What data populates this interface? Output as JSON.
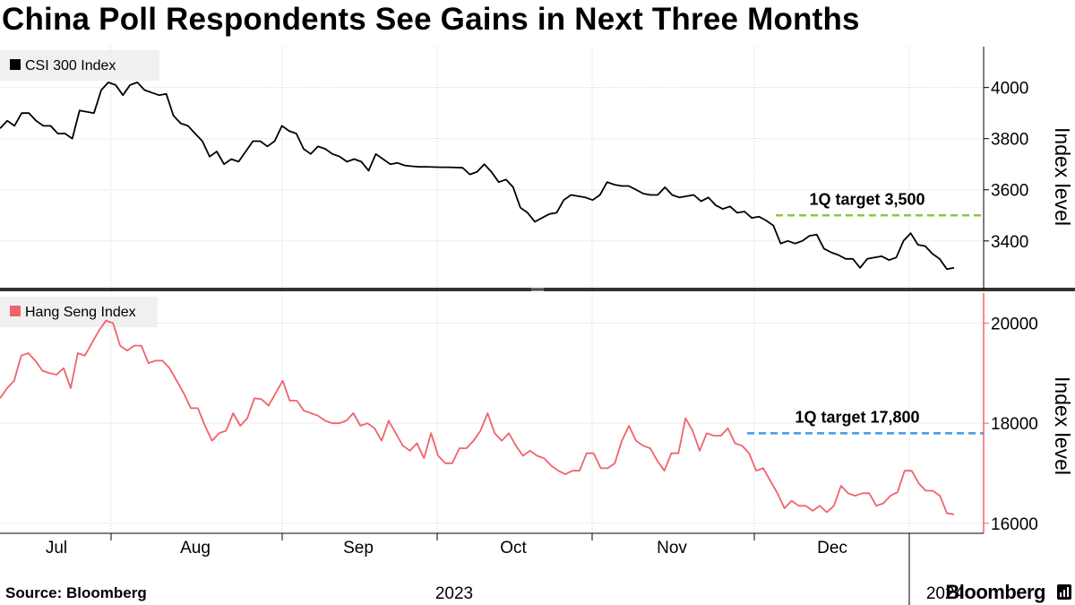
{
  "title": "China Poll Respondents See Gains in Next Three Months",
  "source": "Source: Bloomberg",
  "brand": "Bloomberg",
  "chart_data": [
    {
      "type": "line",
      "series_name": "CSI 300 Index",
      "color": "#000000",
      "ylabel": "Index level",
      "yticks": [
        3400,
        3600,
        3800,
        4000
      ],
      "ylim": [
        3210,
        4160
      ],
      "target": {
        "label": "1Q target 3,500",
        "value": 3500,
        "color": "#8dc63f"
      },
      "values": [
        3840,
        3870,
        3850,
        3900,
        3900,
        3870,
        3850,
        3850,
        3820,
        3820,
        3800,
        3910,
        3905,
        3900,
        3990,
        4020,
        4010,
        3970,
        4010,
        4020,
        3990,
        3980,
        3970,
        3975,
        3890,
        3860,
        3850,
        3820,
        3790,
        3730,
        3750,
        3700,
        3720,
        3710,
        3750,
        3790,
        3790,
        3770,
        3790,
        3850,
        3830,
        3820,
        3760,
        3740,
        3770,
        3760,
        3740,
        3730,
        3710,
        3720,
        3710,
        3675,
        3740,
        3720,
        3700,
        3705,
        3695,
        3692,
        3690,
        3690,
        3689,
        3688,
        3688,
        3687,
        3686,
        3660,
        3670,
        3700,
        3670,
        3630,
        3640,
        3610,
        3530,
        3510,
        3475,
        3490,
        3505,
        3510,
        3560,
        3580,
        3575,
        3570,
        3560,
        3580,
        3630,
        3620,
        3615,
        3615,
        3600,
        3585,
        3580,
        3580,
        3610,
        3580,
        3570,
        3575,
        3580,
        3555,
        3570,
        3540,
        3525,
        3535,
        3510,
        3515,
        3490,
        3495,
        3480,
        3460,
        3390,
        3400,
        3390,
        3400,
        3420,
        3425,
        3370,
        3355,
        3345,
        3330,
        3330,
        3295,
        3330,
        3335,
        3340,
        3325,
        3335,
        3400,
        3430,
        3385,
        3380,
        3350,
        3330,
        3290,
        3295
      ]
    },
    {
      "type": "line",
      "series_name": "Hang Seng Index",
      "color": "#f0636b",
      "ylabel": "Index level",
      "yticks": [
        16000,
        18000,
        20000
      ],
      "ylim": [
        15800,
        20600
      ],
      "target": {
        "label": "1Q target 17,800",
        "value": 17800,
        "color": "#3d9be9"
      },
      "values": [
        18500,
        18700,
        18850,
        19350,
        19400,
        19250,
        19050,
        19000,
        18970,
        19100,
        18700,
        19400,
        19350,
        19600,
        19850,
        20050,
        20000,
        19550,
        19450,
        19550,
        19550,
        19200,
        19250,
        19250,
        19100,
        18850,
        18600,
        18300,
        18300,
        17950,
        17650,
        17800,
        17850,
        18200,
        17950,
        18100,
        18500,
        18480,
        18350,
        18600,
        18850,
        18450,
        18450,
        18250,
        18200,
        18150,
        18050,
        18000,
        18000,
        18050,
        18200,
        17950,
        18000,
        17900,
        17650,
        18050,
        17800,
        17550,
        17450,
        17600,
        17300,
        17800,
        17350,
        17200,
        17200,
        17500,
        17500,
        17650,
        17850,
        18200,
        17800,
        17650,
        17800,
        17550,
        17350,
        17450,
        17350,
        17300,
        17150,
        17050,
        16980,
        17050,
        17050,
        17400,
        17400,
        17100,
        17100,
        17200,
        17650,
        17950,
        17650,
        17550,
        17500,
        17250,
        17050,
        17400,
        17400,
        18100,
        17850,
        17450,
        17800,
        17750,
        17750,
        17900,
        17600,
        17550,
        17400,
        17050,
        17100,
        16850,
        16600,
        16300,
        16450,
        16350,
        16350,
        16250,
        16350,
        16220,
        16350,
        16750,
        16600,
        16550,
        16600,
        16600,
        16350,
        16400,
        16550,
        16620,
        17050,
        17050,
        16800,
        16650,
        16650,
        16550,
        16200,
        16180
      ]
    }
  ],
  "x_axis": {
    "months": [
      "Jul",
      "Aug",
      "Sep",
      "Oct",
      "Nov",
      "Dec"
    ],
    "years": [
      "2023",
      "2024"
    ]
  }
}
